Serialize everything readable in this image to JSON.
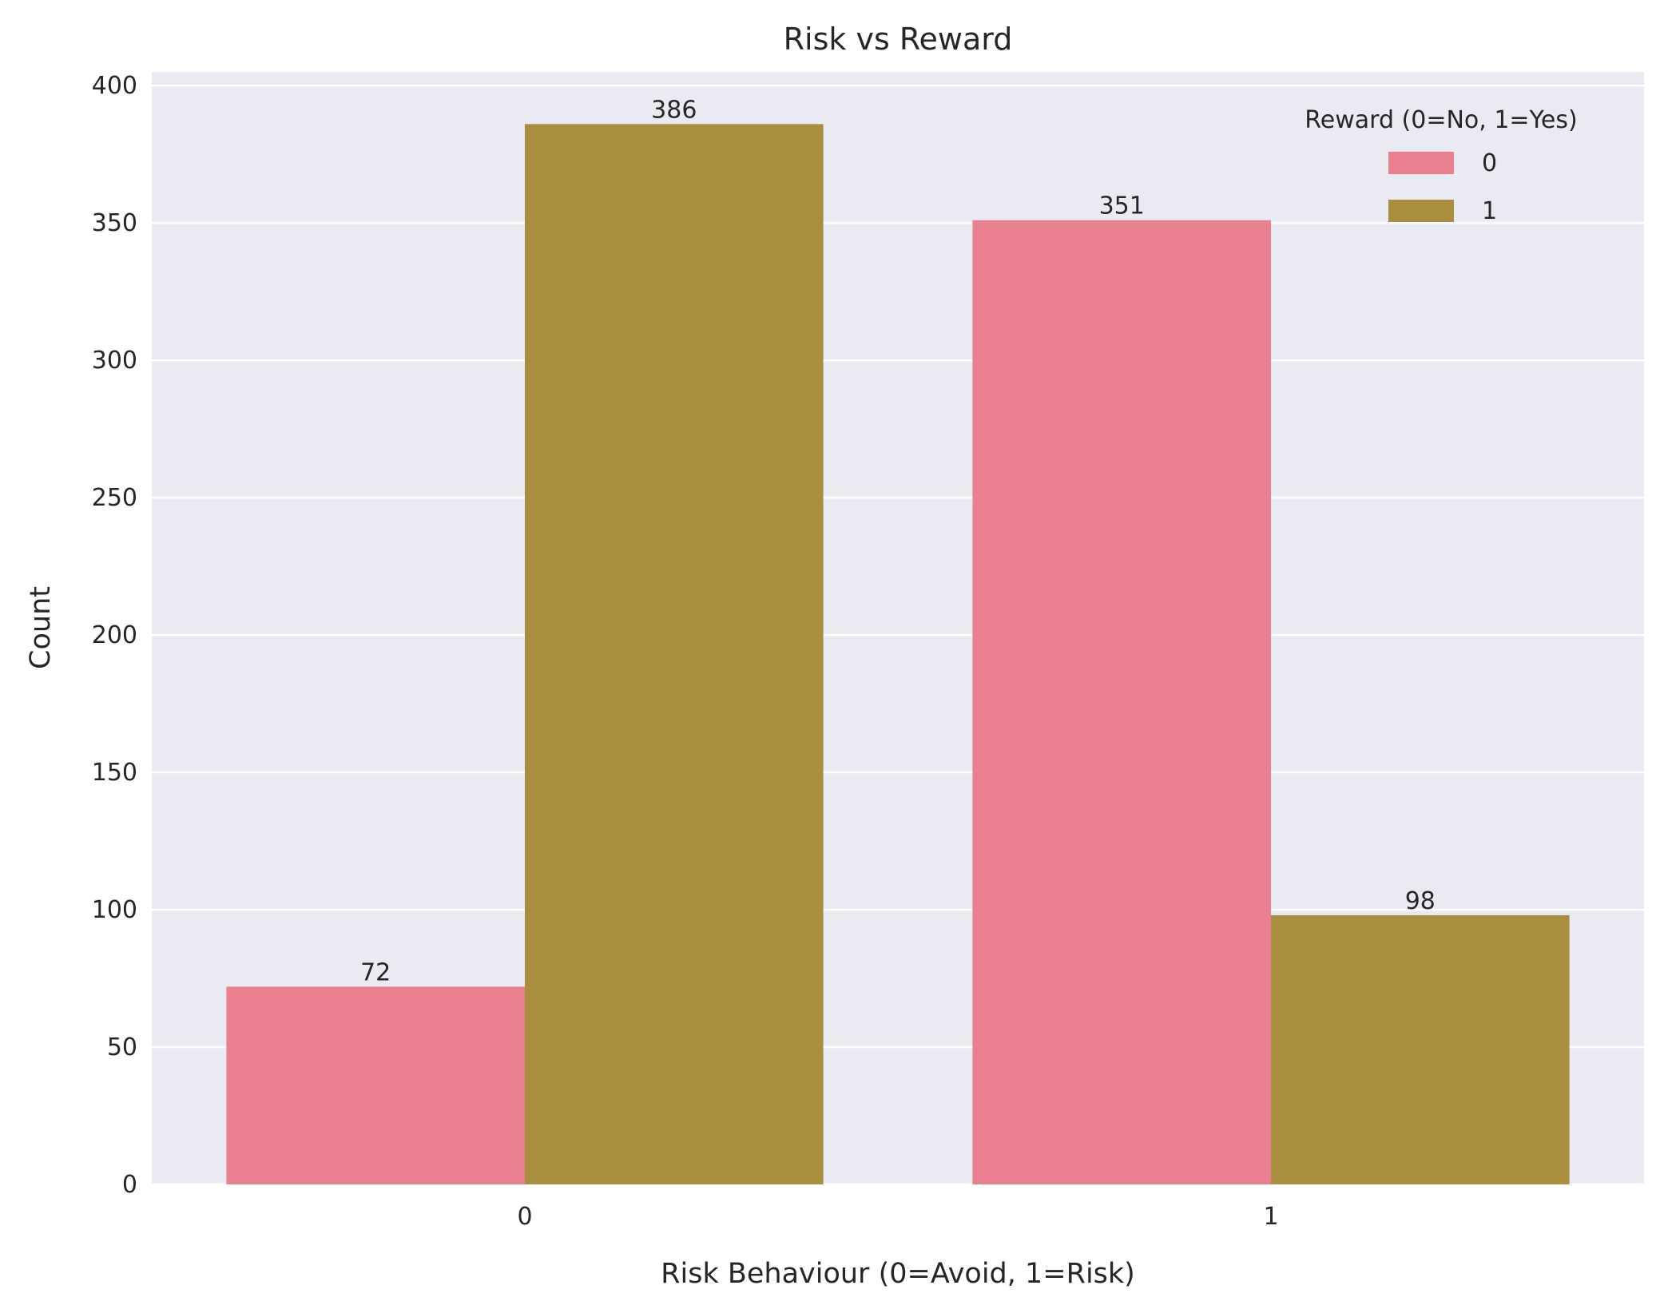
{
  "chart_data": {
    "type": "bar",
    "title": "Risk vs Reward",
    "xlabel": "Risk Behaviour (0=Avoid, 1=Risk)",
    "ylabel": "Count",
    "categories": [
      "0",
      "1"
    ],
    "series": [
      {
        "name": "0",
        "values": [
          72,
          351
        ],
        "color": "#e8808f"
      },
      {
        "name": "1",
        "values": [
          386,
          98
        ],
        "color": "#aa8e40"
      }
    ],
    "ylim": [
      0,
      405
    ],
    "yticks": [
      0,
      50,
      100,
      150,
      200,
      250,
      300,
      350,
      400
    ],
    "data_labels": [
      "72",
      "351",
      "386",
      "98"
    ],
    "grid": true,
    "legend": {
      "title": "Reward (0=No, 1=Yes)",
      "placement": "top-right"
    },
    "background_color": "#eaeaf2",
    "grid_color": "#ffffff"
  }
}
